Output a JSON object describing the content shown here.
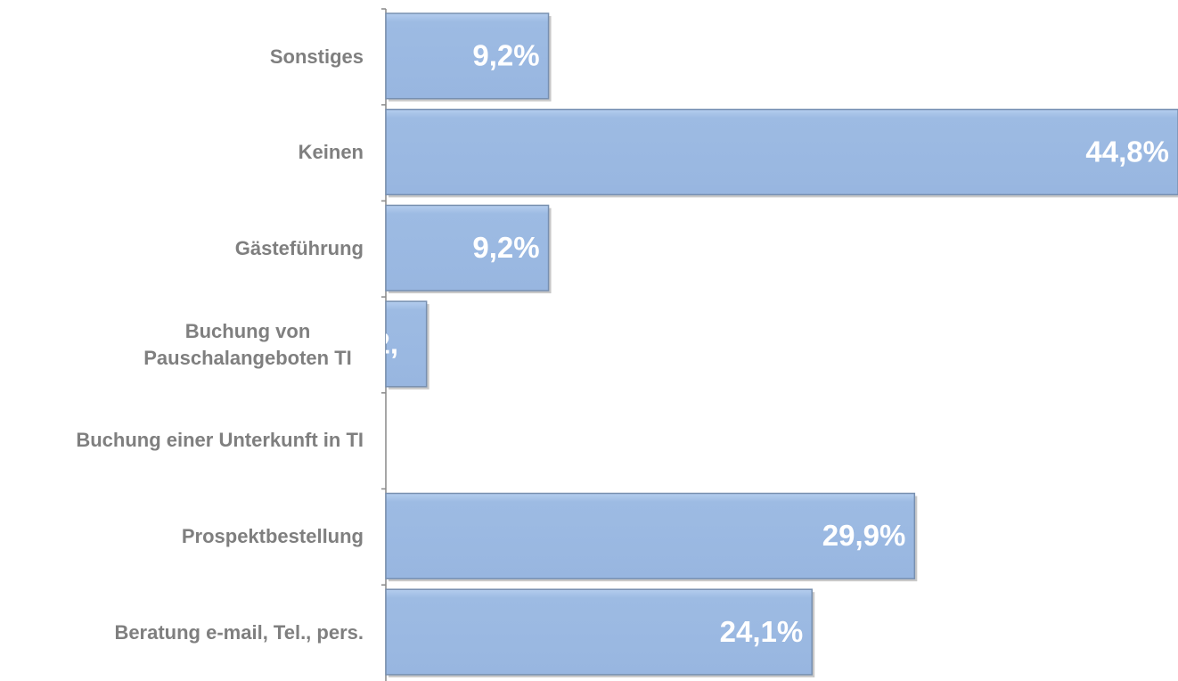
{
  "chart_data": {
    "type": "hbar",
    "categories": [
      "Sonstiges",
      "Keinen",
      "Gästeführung",
      "Buchung von Pauschalangeboten TI",
      "Buchung einer Unterkunft in TI",
      "Prospektbestellung",
      "Beratung e-mail, Tel., pers."
    ],
    "values": [
      9.2,
      44.8,
      9.2,
      2.3,
      null,
      29.9,
      24.1
    ],
    "value_labels": [
      "9,2%",
      "44,8%",
      "9,2%",
      "2,",
      null,
      "29,9%",
      "24,1%"
    ],
    "color": "#9dbbe3",
    "xlim": [
      0,
      44.8
    ]
  }
}
